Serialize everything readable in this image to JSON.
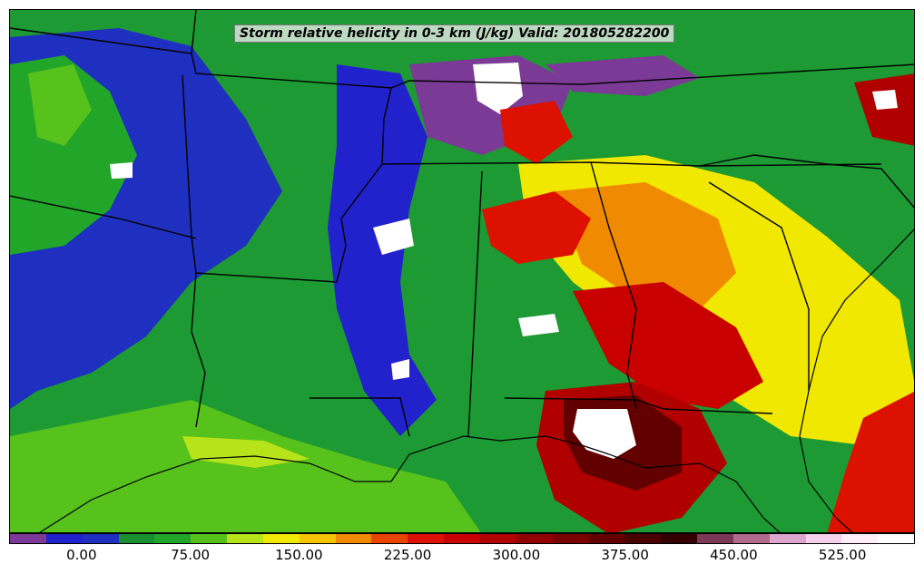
{
  "title": "Storm relative helicity in 0-3 km (J/kg) Valid: 201805282200",
  "colorbar": {
    "colors": [
      "#7b3a96",
      "#2222cc",
      "#1f2fbf",
      "#1a8f2f",
      "#21a62a",
      "#57c21b",
      "#b7e31a",
      "#f0e800",
      "#f5c400",
      "#f08a00",
      "#e84400",
      "#dd1100",
      "#c80000",
      "#b00000",
      "#920000",
      "#7a0000",
      "#620000",
      "#4a0000",
      "#340000",
      "#7a3a55",
      "#b06a8e",
      "#dda6cc",
      "#f5d1ec",
      "#ffeefa",
      "#ffffff"
    ],
    "tick_labels": [
      "0.00",
      "75.00",
      "150.00",
      "225.00",
      "300.00",
      "375.00",
      "450.00",
      "525.00"
    ]
  },
  "legend_values": {
    "ticks": [
      0,
      75,
      150,
      225,
      300,
      375,
      450,
      525
    ],
    "range": [
      -50,
      575
    ]
  }
}
